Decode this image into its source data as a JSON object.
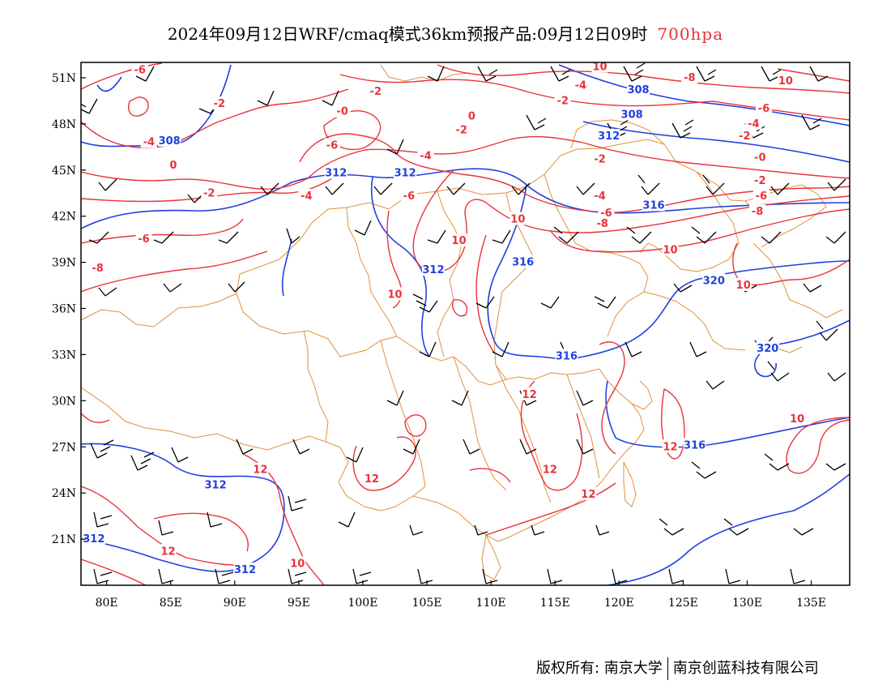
{
  "title": {
    "main": "2024年09月12日WRF/cmaq模式36km预报产品:09月12日09时",
    "level": "700hpa"
  },
  "axes": {
    "lat_labels": [
      "51N",
      "48N",
      "45N",
      "42N",
      "39N",
      "36N",
      "33N",
      "30N",
      "27N",
      "24N",
      "21N"
    ],
    "lat_values": [
      51,
      48,
      45,
      42,
      39,
      36,
      33,
      30,
      27,
      24,
      21
    ],
    "lon_labels": [
      "80E",
      "85E",
      "90E",
      "95E",
      "100E",
      "105E",
      "110E",
      "115E",
      "120E",
      "125E",
      "130E",
      "135E"
    ],
    "lon_values": [
      80,
      85,
      90,
      95,
      100,
      105,
      110,
      115,
      120,
      125,
      130,
      135
    ],
    "lon_range": [
      78,
      138
    ],
    "lat_range": [
      18,
      52
    ]
  },
  "colors": {
    "temperature_contour": "#e8333a",
    "height_contour": "#2040e0",
    "boundary": "#e0913a",
    "wind_barb": "#000000"
  },
  "temperature_labels": [
    {
      "text": "-6",
      "lon": 82.6,
      "lat": 51.5
    },
    {
      "text": "-2",
      "lon": 88.8,
      "lat": 49.3
    },
    {
      "text": "-4",
      "lon": 83.3,
      "lat": 46.8
    },
    {
      "text": "0",
      "lon": 85.2,
      "lat": 45.3
    },
    {
      "text": "-2",
      "lon": 88.0,
      "lat": 43.5
    },
    {
      "text": "-6",
      "lon": 82.9,
      "lat": 40.5
    },
    {
      "text": "-8",
      "lon": 79.3,
      "lat": 38.6
    },
    {
      "text": "-0",
      "lon": 98.4,
      "lat": 48.8
    },
    {
      "text": "-6",
      "lon": 97.6,
      "lat": 46.6
    },
    {
      "text": "-4",
      "lon": 95.6,
      "lat": 43.3
    },
    {
      "text": "-2",
      "lon": 101.0,
      "lat": 50.1
    },
    {
      "text": "-4",
      "lon": 104.9,
      "lat": 45.9
    },
    {
      "text": "-6",
      "lon": 103.6,
      "lat": 43.3
    },
    {
      "text": "-2",
      "lon": 107.7,
      "lat": 47.6
    },
    {
      "text": "0",
      "lon": 108.5,
      "lat": 48.5
    },
    {
      "text": "10",
      "lon": 112.1,
      "lat": 41.8
    },
    {
      "text": "10",
      "lon": 107.5,
      "lat": 40.4
    },
    {
      "text": "10",
      "lon": 102.5,
      "lat": 36.9
    },
    {
      "text": "10",
      "lon": 118.5,
      "lat": 51.7
    },
    {
      "text": "-4",
      "lon": 117.0,
      "lat": 50.5
    },
    {
      "text": "-2",
      "lon": 115.6,
      "lat": 49.5
    },
    {
      "text": "-2",
      "lon": 118.5,
      "lat": 45.7
    },
    {
      "text": "-4",
      "lon": 118.5,
      "lat": 43.3
    },
    {
      "text": "-6",
      "lon": 119.0,
      "lat": 42.2
    },
    {
      "text": "-8",
      "lon": 118.7,
      "lat": 41.5
    },
    {
      "text": "-8",
      "lon": 125.5,
      "lat": 51.0
    },
    {
      "text": "10",
      "lon": 133.0,
      "lat": 50.8
    },
    {
      "text": "-6",
      "lon": 131.3,
      "lat": 49.0
    },
    {
      "text": "-4",
      "lon": 130.5,
      "lat": 48.0
    },
    {
      "text": "-2",
      "lon": 129.8,
      "lat": 47.2
    },
    {
      "text": "-0",
      "lon": 131.0,
      "lat": 45.8
    },
    {
      "text": "-2",
      "lon": 131.0,
      "lat": 44.3
    },
    {
      "text": "-6",
      "lon": 131.1,
      "lat": 43.3
    },
    {
      "text": "-8",
      "lon": 130.8,
      "lat": 42.3
    },
    {
      "text": "10",
      "lon": 124.0,
      "lat": 39.8
    },
    {
      "text": "10",
      "lon": 129.7,
      "lat": 37.5
    },
    {
      "text": "12",
      "lon": 113.0,
      "lat": 30.4
    },
    {
      "text": "12",
      "lon": 124.0,
      "lat": 27.0
    },
    {
      "text": "12",
      "lon": 114.6,
      "lat": 25.5
    },
    {
      "text": "12",
      "lon": 117.6,
      "lat": 23.9
    },
    {
      "text": "10",
      "lon": 133.9,
      "lat": 28.8
    },
    {
      "text": "12",
      "lon": 100.7,
      "lat": 24.9
    },
    {
      "text": "12",
      "lon": 92.0,
      "lat": 25.5
    },
    {
      "text": "12",
      "lon": 84.8,
      "lat": 20.2
    },
    {
      "text": "10",
      "lon": 94.9,
      "lat": 19.4
    }
  ],
  "height_labels": [
    {
      "text": "308",
      "lon": 84.9,
      "lat": 46.9
    },
    {
      "text": "308",
      "lon": 121.5,
      "lat": 50.2
    },
    {
      "text": "308",
      "lon": 121.0,
      "lat": 48.6
    },
    {
      "text": "312",
      "lon": 97.9,
      "lat": 44.8
    },
    {
      "text": "312",
      "lon": 103.3,
      "lat": 44.8
    },
    {
      "text": "312",
      "lon": 119.2,
      "lat": 47.2
    },
    {
      "text": "312",
      "lon": 105.5,
      "lat": 38.5
    },
    {
      "text": "316",
      "lon": 112.5,
      "lat": 39.0
    },
    {
      "text": "316",
      "lon": 122.7,
      "lat": 42.7
    },
    {
      "text": "316",
      "lon": 115.9,
      "lat": 32.9
    },
    {
      "text": "320",
      "lon": 127.4,
      "lat": 37.8
    },
    {
      "text": "320",
      "lon": 131.6,
      "lat": 33.4
    },
    {
      "text": "316",
      "lon": 125.9,
      "lat": 27.1
    },
    {
      "text": "312",
      "lon": 88.5,
      "lat": 24.5
    },
    {
      "text": "312",
      "lon": 79.0,
      "lat": 21.0
    },
    {
      "text": "312",
      "lon": 90.8,
      "lat": 19.0
    }
  ],
  "footer": {
    "copyright": "版权所有: 南京大学",
    "company": "南京创蓝科技有限公司"
  }
}
